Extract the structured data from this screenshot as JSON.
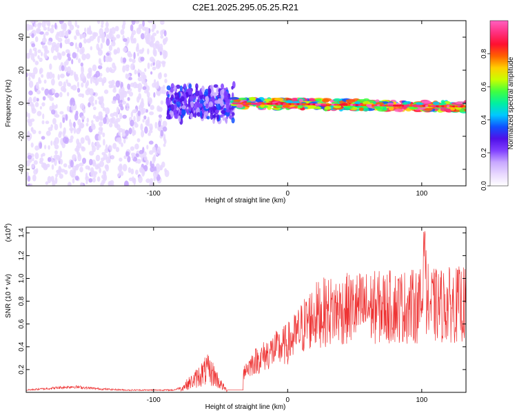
{
  "title": "C2E1.2025.295.05.25.R21",
  "chart_data": [
    {
      "type": "heatmap",
      "panel": "spectrogram",
      "xlabel": "Height of straight line (km)",
      "ylabel": "Frequency (Hz)",
      "xlim": [
        -195,
        133
      ],
      "ylim": [
        -50,
        50
      ],
      "x_ticks": [
        -100,
        0,
        100
      ],
      "x_tick_labels": [
        "-100",
        "0",
        "100"
      ],
      "y_ticks": [
        -40,
        -20,
        0,
        20,
        40
      ],
      "y_tick_labels": [
        "-40",
        "-20",
        "0",
        "20",
        "40"
      ],
      "colorbar": {
        "label": "Normalized spectral amplitude",
        "range": [
          0,
          1
        ],
        "ticks": [
          0.0,
          0.2,
          0.4,
          0.6,
          0.8
        ],
        "tick_labels": [
          "0.0",
          "0.2",
          "0.4",
          "0.6",
          "0.8"
        ],
        "colors": [
          "#ffffff",
          "#e8d8ff",
          "#c8a8ff",
          "#8040ff",
          "#5010e8",
          "#1050ff",
          "#00c8ff",
          "#00f0a0",
          "#40ff40",
          "#c8ff00",
          "#ffd000",
          "#ff6000",
          "#ff1030",
          "#ff3080",
          "#ff60c0"
        ]
      },
      "regions": [
        {
          "x_range": [
            -195,
            -90
          ],
          "freq_range": [
            -50,
            50
          ],
          "amplitude": 0.12,
          "description_level": "scattered weak"
        },
        {
          "x_range": [
            -90,
            -40
          ],
          "freq_range": [
            -12,
            12
          ],
          "amplitude": 0.3,
          "description_level": "medium"
        },
        {
          "x_range": [
            -40,
            133
          ],
          "freq_range": [
            -3,
            3
          ],
          "amplitude": 0.85,
          "description_level": "strong narrow line"
        }
      ]
    },
    {
      "type": "line",
      "panel": "snr",
      "xlabel": "Height of straight line (km)",
      "ylabel": "SNR (10 * v/v)",
      "y_multiplier": "(x10",
      "y_multiplier_exp": "4",
      "y_multiplier_close": ")",
      "xlim": [
        -195,
        133
      ],
      "ylim": [
        0,
        1.45
      ],
      "x_ticks": [
        -100,
        0,
        100
      ],
      "x_tick_labels": [
        "-100",
        "0",
        "100"
      ],
      "y_ticks": [
        0.2,
        0.4,
        0.6,
        0.8,
        1.0,
        1.2,
        1.4
      ],
      "y_tick_labels": [
        "0.2",
        "0.4",
        "0.6",
        "0.8",
        "1.0",
        "1.2",
        "1.4"
      ],
      "line_color": "#ee3333",
      "series": [
        {
          "name": "SNR",
          "x": [
            -195,
            -160,
            -140,
            -120,
            -100,
            -85,
            -80,
            -75,
            -70,
            -65,
            -60,
            -55,
            -50,
            -45,
            -40,
            -35,
            -30,
            -25,
            -20,
            -15,
            -10,
            -5,
            0,
            5,
            10,
            15,
            20,
            25,
            30,
            40,
            50,
            60,
            70,
            80,
            90,
            100,
            102,
            105,
            110,
            120,
            133
          ],
          "y": [
            0.02,
            0.05,
            0.03,
            0.02,
            0.02,
            0.02,
            0.04,
            0.1,
            0.15,
            0.22,
            0.28,
            0.22,
            0.1,
            0.02,
            0.02,
            0.25,
            0.3,
            0.38,
            0.42,
            0.48,
            0.52,
            0.56,
            0.6,
            0.68,
            0.78,
            0.88,
            0.95,
            0.98,
            1.0,
            1.02,
            1.04,
            1.05,
            1.05,
            1.06,
            1.06,
            1.07,
            1.42,
            1.08,
            1.07,
            1.08,
            1.09
          ]
        }
      ]
    }
  ]
}
